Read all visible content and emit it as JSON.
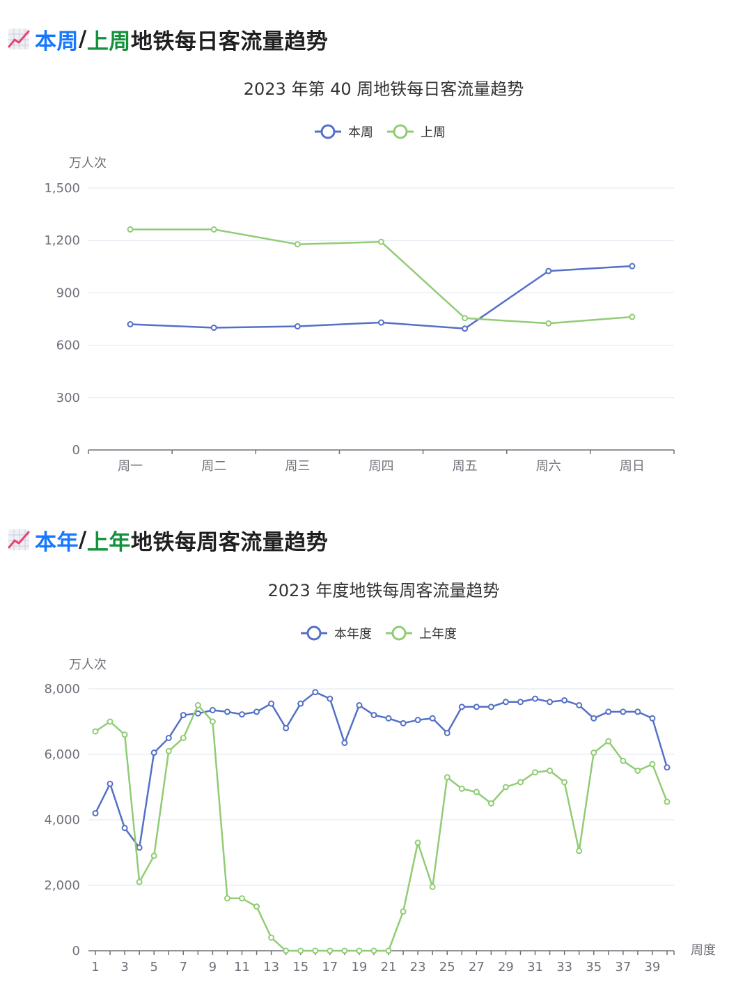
{
  "sections": [
    {
      "heading": {
        "part1": "本周",
        "sep": "/",
        "part2": "上周",
        "rest": "地铁每日客流量趋势"
      },
      "icon": "chart-increasing-icon"
    },
    {
      "heading": {
        "part1": "本年",
        "sep": "/",
        "part2": "上年",
        "rest": "地铁每周客流量趋势"
      },
      "icon": "chart-increasing-icon"
    }
  ],
  "colors": {
    "blue": "#5470c6",
    "green": "#91cc75",
    "grid": "#e0e6f1",
    "axis": "#6e7079"
  },
  "chart_data": [
    {
      "type": "line",
      "title": "2023 年第 40 周地铁每日客流量趋势",
      "ylabel": "万人次",
      "xlabel": "",
      "ylim": [
        0,
        1500
      ],
      "yticks": [
        0,
        300,
        600,
        900,
        1200,
        1500
      ],
      "yticklabels": [
        "0",
        "300",
        "600",
        "900",
        "1,200",
        "1,500"
      ],
      "categories": [
        "周一",
        "周二",
        "周三",
        "周四",
        "周五",
        "周六",
        "周日"
      ],
      "grid": true,
      "legend_position": "top-center",
      "series": [
        {
          "name": "本周",
          "color": "#5470c6",
          "values": [
            720,
            700,
            708,
            730,
            695,
            1025,
            1053
          ]
        },
        {
          "name": "上周",
          "color": "#91cc75",
          "values": [
            1263,
            1263,
            1178,
            1192,
            755,
            725,
            762
          ]
        }
      ]
    },
    {
      "type": "line",
      "title": "2023 年度地铁每周客流量趋势",
      "ylabel": "万人次",
      "xlabel": "周度",
      "ylim": [
        0,
        8000
      ],
      "yticks": [
        0,
        2000,
        4000,
        6000,
        8000
      ],
      "yticklabels": [
        "0",
        "2,000",
        "4,000",
        "6,000",
        "8,000"
      ],
      "categories": [
        "1",
        "2",
        "3",
        "4",
        "5",
        "6",
        "7",
        "8",
        "9",
        "10",
        "11",
        "12",
        "13",
        "14",
        "15",
        "16",
        "17",
        "18",
        "19",
        "20",
        "21",
        "22",
        "23",
        "24",
        "25",
        "26",
        "27",
        "28",
        "29",
        "30",
        "31",
        "32",
        "33",
        "34",
        "35",
        "36",
        "37",
        "38",
        "39",
        "40"
      ],
      "xticklabels": [
        "1",
        "3",
        "5",
        "7",
        "9",
        "11",
        "13",
        "15",
        "17",
        "19",
        "21",
        "23",
        "25",
        "27",
        "29",
        "31",
        "33",
        "35",
        "37",
        "39"
      ],
      "grid": true,
      "legend_position": "top-center",
      "series": [
        {
          "name": "本年度",
          "color": "#5470c6",
          "values": [
            4200,
            5100,
            3750,
            3150,
            6050,
            6500,
            7200,
            7250,
            7350,
            7300,
            7220,
            7300,
            7550,
            6800,
            7550,
            7900,
            7700,
            6350,
            7500,
            7200,
            7100,
            6950,
            7050,
            7100,
            6650,
            7450,
            7450,
            7450,
            7600,
            7600,
            7700,
            7600,
            7650,
            7500,
            7100,
            7300,
            7300,
            7300,
            7100,
            5600
          ]
        },
        {
          "name": "上年度",
          "color": "#91cc75",
          "values": [
            6700,
            7000,
            6600,
            2100,
            2900,
            6100,
            6500,
            7500,
            7000,
            1600,
            1600,
            1350,
            400,
            0,
            0,
            0,
            0,
            0,
            0,
            0,
            0,
            1200,
            3300,
            1950,
            5300,
            4950,
            4850,
            4500,
            5000,
            5150,
            5450,
            5500,
            5150,
            3050,
            6050,
            6400,
            5800,
            5500,
            5700,
            4550
          ]
        }
      ]
    }
  ]
}
